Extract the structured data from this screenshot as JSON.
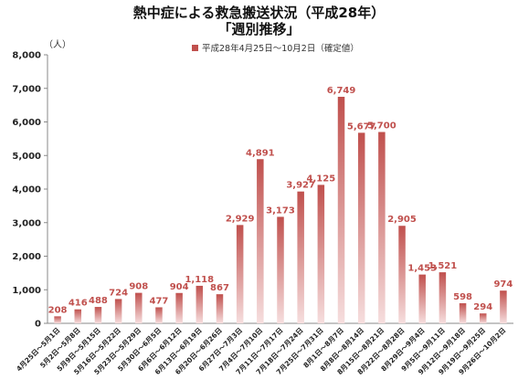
{
  "title_line1": "熱中症による救急搬送状況（平成28年）",
  "title_line2": "「週別推移」",
  "unit_label": "（人）",
  "chart_data": {
    "type": "bar",
    "series": [
      {
        "name": "平成28年4月25日～10月2日（確定値）",
        "color": "#c0504d",
        "values": [
          208,
          416,
          488,
          724,
          908,
          477,
          904,
          1118,
          867,
          2929,
          4891,
          3173,
          3927,
          4125,
          6749,
          5677,
          5700,
          2905,
          1453,
          1521,
          598,
          294,
          974
        ]
      }
    ],
    "categories": [
      "4月25日～5月1日",
      "5月2日～5月8日",
      "5月9日～5月15日",
      "5月16日～5月22日",
      "5月23日～5月29日",
      "5月30日～6月5日",
      "6月6日～6月12日",
      "6月13日～6月19日",
      "6月20日～6月26日",
      "6月27日～7月3日",
      "7月4日～7月10日",
      "7月11日～7月17日",
      "7月18日～7月24日",
      "7月25日～7月31日",
      "8月1日～8月7日",
      "8月8日～8月14日",
      "8月15日～8月21日",
      "8月22日～8月28日",
      "8月29日～9月4日",
      "9月5日～9月11日",
      "9月12日～9月18日",
      "9月19日～9月25日",
      "9月26日～10月2日"
    ],
    "y_ticks": [
      "0",
      "1,000",
      "2,000",
      "3,000",
      "4,000",
      "5,000",
      "6,000",
      "7,000",
      "8,000"
    ],
    "ylim": [
      0,
      8000
    ],
    "grid": false,
    "legend_position": "top-center"
  }
}
